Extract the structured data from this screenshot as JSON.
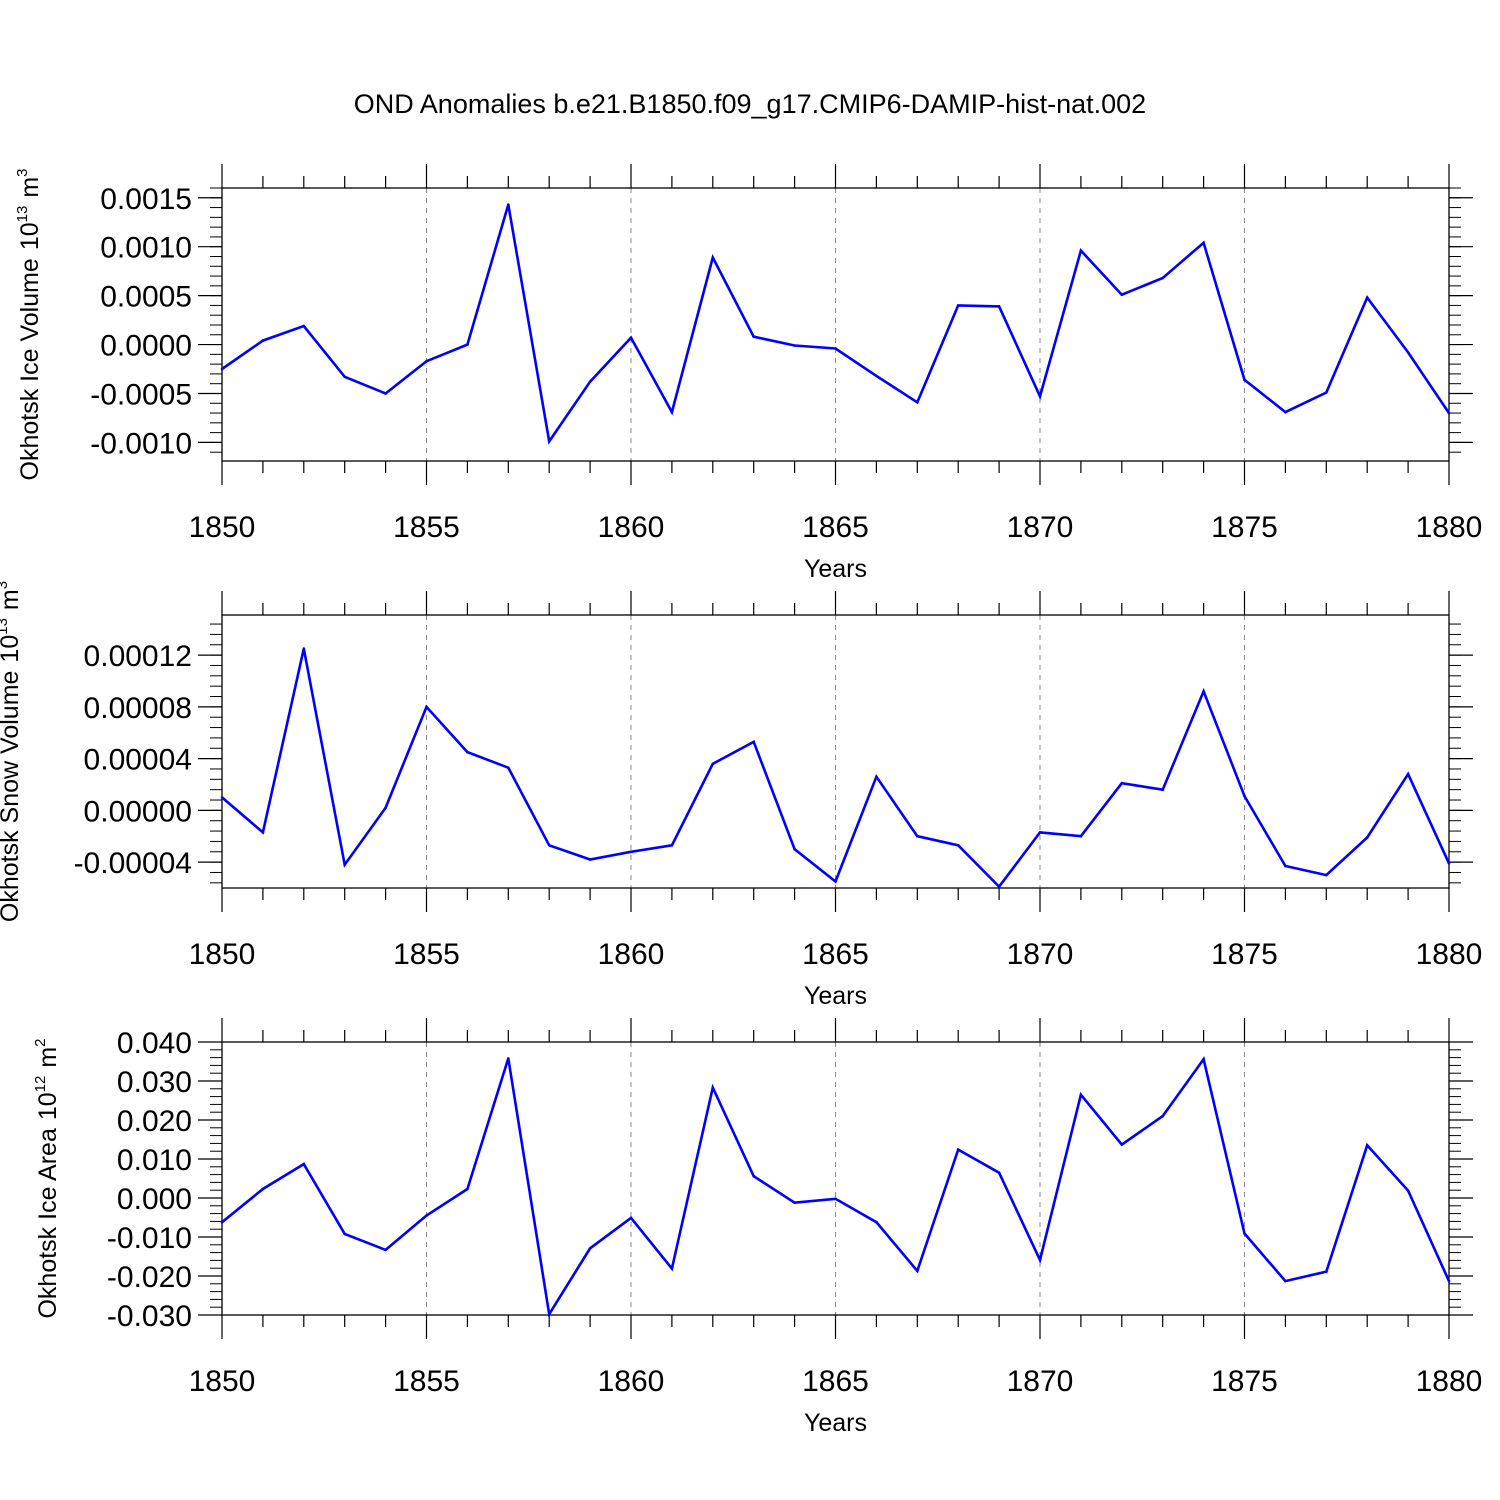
{
  "title": "OND Anomalies b.e21.B1850.f09_g17.CMIP6-DAMIP-hist-nat.002",
  "colors": {
    "series": "#0000ff",
    "axes": "#000000",
    "grid": "#888888"
  },
  "chart_data": [
    {
      "type": "line",
      "xlabel": "Years",
      "ylabel": "Okhotsk Ice Volume",
      "yunit": {
        "base": "10",
        "exp": "13",
        "unit": "m",
        "unit_exp": "3"
      },
      "xlim": [
        1850,
        1880
      ],
      "ylim": [
        -0.00119,
        0.0016
      ],
      "xticks": [
        1850,
        1855,
        1860,
        1865,
        1870,
        1875,
        1880
      ],
      "xtick_labels": [
        "1850",
        "1855",
        "1860",
        "1865",
        "1870",
        "1875",
        "1880"
      ],
      "yticks": [
        0.0015,
        0.001,
        0.0005,
        0.0,
        -0.0005,
        -0.001
      ],
      "ytick_labels": [
        "0.0015",
        "0.0010",
        "0.0005",
        "0.0000",
        "-0.0005",
        "-0.0010"
      ],
      "grid": "vertical dashed every 5 years",
      "x": [
        1850,
        1851,
        1852,
        1853,
        1854,
        1855,
        1856,
        1857,
        1858,
        1859,
        1860,
        1861,
        1862,
        1863,
        1864,
        1865,
        1866,
        1867,
        1868,
        1869,
        1870,
        1871,
        1872,
        1873,
        1874,
        1875,
        1876,
        1877,
        1878,
        1879,
        1880
      ],
      "values": [
        -0.00025,
        4e-05,
        0.00019,
        -0.00033,
        -0.0005,
        -0.00017,
        0.0,
        0.00143,
        -0.00099,
        -0.00038,
        7e-05,
        -0.00069,
        0.00089,
        8e-05,
        -1e-05,
        -4e-05,
        -0.00032,
        -0.00059,
        0.0004,
        0.00039,
        -0.00053,
        0.00096,
        0.00051,
        0.00068,
        0.00104,
        -0.00036,
        -0.00069,
        -0.00049,
        0.00048,
        -8e-05,
        -0.0007
      ]
    },
    {
      "type": "line",
      "xlabel": "Years",
      "ylabel": "Okhotsk Snow Volume",
      "yunit": {
        "base": "10",
        "exp": "13",
        "unit": "m",
        "unit_exp": "3"
      },
      "xlim": [
        1850,
        1880
      ],
      "ylim": [
        -6e-05,
        0.000151
      ],
      "xticks": [
        1850,
        1855,
        1860,
        1865,
        1870,
        1875,
        1880
      ],
      "xtick_labels": [
        "1850",
        "1855",
        "1860",
        "1865",
        "1870",
        "1875",
        "1880"
      ],
      "yticks": [
        0.00012,
        8e-05,
        4e-05,
        0.0,
        -4e-05
      ],
      "ytick_labels": [
        "0.00012",
        "0.00008",
        "0.00004",
        "0.00000",
        "-0.00004"
      ],
      "grid": "vertical dashed every 5 years",
      "x": [
        1850,
        1851,
        1852,
        1853,
        1854,
        1855,
        1856,
        1857,
        1858,
        1859,
        1860,
        1861,
        1862,
        1863,
        1864,
        1865,
        1866,
        1867,
        1868,
        1869,
        1870,
        1871,
        1872,
        1873,
        1874,
        1875,
        1876,
        1877,
        1878,
        1879,
        1880
      ],
      "values": [
        1e-05,
        -1.7e-05,
        0.000125,
        -4.2e-05,
        2e-06,
        8e-05,
        4.5e-05,
        3.3e-05,
        -2.7e-05,
        -3.8e-05,
        -3.2e-05,
        -2.7e-05,
        3.6e-05,
        5.3e-05,
        -3e-05,
        -5.5e-05,
        2.6e-05,
        -2e-05,
        -2.7e-05,
        -5.9e-05,
        -1.7e-05,
        -2e-05,
        2.1e-05,
        1.6e-05,
        9.2e-05,
        1.1e-05,
        -4.3e-05,
        -5e-05,
        -2.1e-05,
        2.8e-05,
        -4.1e-05
      ]
    },
    {
      "type": "line",
      "xlabel": "Years",
      "ylabel": "Okhotsk Ice Area",
      "yunit": {
        "base": "10",
        "exp": "12",
        "unit": "m",
        "unit_exp": "2"
      },
      "xlim": [
        1850,
        1880
      ],
      "ylim": [
        -0.03,
        0.04
      ],
      "xticks": [
        1850,
        1855,
        1860,
        1865,
        1870,
        1875,
        1880
      ],
      "xtick_labels": [
        "1850",
        "1855",
        "1860",
        "1865",
        "1870",
        "1875",
        "1880"
      ],
      "yticks": [
        0.04,
        0.03,
        0.02,
        0.01,
        0.0,
        -0.01,
        -0.02,
        -0.03
      ],
      "ytick_labels": [
        "0.040",
        "0.030",
        "0.020",
        "0.010",
        "0.000",
        "-0.010",
        "-0.020",
        "-0.030"
      ],
      "grid": "vertical dashed every 5 years",
      "x": [
        1850,
        1851,
        1852,
        1853,
        1854,
        1855,
        1856,
        1857,
        1858,
        1859,
        1860,
        1861,
        1862,
        1863,
        1864,
        1865,
        1866,
        1867,
        1868,
        1869,
        1870,
        1871,
        1872,
        1873,
        1874,
        1875,
        1876,
        1877,
        1878,
        1879,
        1880
      ],
      "values": [
        -0.0062,
        0.0023,
        0.0087,
        -0.0092,
        -0.0133,
        -0.0045,
        0.0023,
        0.0358,
        -0.0298,
        -0.0129,
        -0.0051,
        -0.0181,
        0.0283,
        0.0056,
        -0.0012,
        -0.0002,
        -0.0062,
        -0.0187,
        0.0124,
        0.0065,
        -0.0159,
        0.0265,
        0.0137,
        0.021,
        0.0356,
        -0.0091,
        -0.0213,
        -0.0189,
        0.0135,
        0.0019,
        -0.0213
      ]
    }
  ]
}
